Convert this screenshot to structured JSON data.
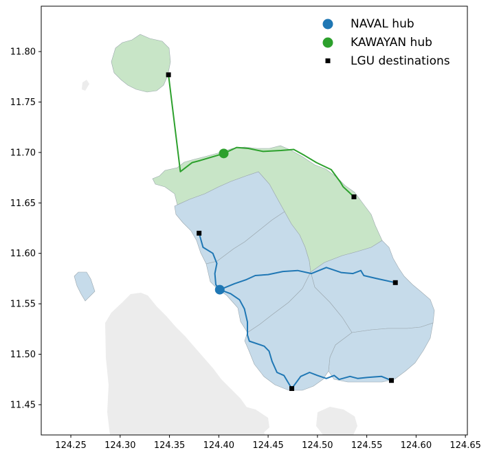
{
  "colors": {
    "land": "#ececec",
    "naval_fill": "#c6dbea",
    "kawayan_fill": "#c8e5c7",
    "boundary": "#9aa6ad",
    "naval_route": "#1f77b4",
    "kawayan_route": "#2ca02c",
    "destination": "#000000",
    "axis": "#000000"
  },
  "legend": {
    "naval_hub": "NAVAL hub",
    "kawayan_hub": "KAWAYAN hub",
    "lgu_destinations": "LGU destinations"
  },
  "chart_data": {
    "type": "scatter",
    "xlim": [
      124.22,
      124.652
    ],
    "ylim": [
      11.42,
      11.845
    ],
    "x_ticks": [
      "124.25",
      "124.30",
      "124.35",
      "124.40",
      "124.45",
      "124.50",
      "124.55",
      "124.60",
      "124.65"
    ],
    "y_ticks": [
      "11.45",
      "11.50",
      "11.55",
      "11.60",
      "11.65",
      "11.70",
      "11.75",
      "11.80"
    ],
    "series": [
      {
        "name": "NAVAL hub",
        "points": [
          [
            124.401,
            11.564
          ]
        ]
      },
      {
        "name": "KAWAYAN hub",
        "points": [
          [
            124.405,
            11.699
          ]
        ]
      },
      {
        "name": "LGU destinations",
        "points": [
          [
            124.349,
            11.777
          ],
          [
            124.38,
            11.62
          ],
          [
            124.537,
            11.656
          ],
          [
            124.579,
            11.571
          ],
          [
            124.575,
            11.474
          ],
          [
            124.474,
            11.466
          ]
        ]
      }
    ],
    "routes": {
      "kawayan": [
        [
          [
            124.405,
            11.699
          ],
          [
            124.381,
            11.692
          ],
          [
            124.373,
            11.69
          ],
          [
            124.361,
            11.681
          ],
          [
            124.349,
            11.777
          ]
        ],
        [
          [
            124.405,
            11.699
          ],
          [
            124.418,
            11.705
          ],
          [
            124.43,
            11.704
          ],
          [
            124.445,
            11.701
          ],
          [
            124.463,
            11.702
          ],
          [
            124.476,
            11.703
          ],
          [
            124.487,
            11.697
          ],
          [
            124.499,
            11.69
          ],
          [
            124.514,
            11.683
          ],
          [
            124.523,
            11.671
          ],
          [
            124.526,
            11.666
          ],
          [
            124.537,
            11.656
          ]
        ]
      ],
      "naval": [
        [
          [
            124.401,
            11.564
          ],
          [
            124.397,
            11.569
          ],
          [
            124.396,
            11.58
          ],
          [
            124.398,
            11.59
          ],
          [
            124.394,
            11.6
          ],
          [
            124.384,
            11.606
          ],
          [
            124.38,
            11.62
          ]
        ],
        [
          [
            124.401,
            11.564
          ],
          [
            124.416,
            11.57
          ],
          [
            124.428,
            11.574
          ],
          [
            124.437,
            11.578
          ],
          [
            124.45,
            11.579
          ],
          [
            124.465,
            11.582
          ],
          [
            124.48,
            11.583
          ],
          [
            124.494,
            11.58
          ],
          [
            124.509,
            11.586
          ],
          [
            124.524,
            11.581
          ],
          [
            124.536,
            11.58
          ],
          [
            124.544,
            11.583
          ],
          [
            124.547,
            11.578
          ],
          [
            124.56,
            11.575
          ],
          [
            124.579,
            11.571
          ]
        ],
        [
          [
            124.401,
            11.564
          ],
          [
            124.412,
            11.56
          ],
          [
            124.421,
            11.554
          ],
          [
            124.426,
            11.545
          ],
          [
            124.429,
            11.532
          ],
          [
            124.429,
            11.519
          ],
          [
            124.431,
            11.513
          ],
          [
            124.446,
            11.508
          ],
          [
            124.451,
            11.503
          ],
          [
            124.454,
            11.493
          ],
          [
            124.459,
            11.482
          ],
          [
            124.466,
            11.479
          ],
          [
            124.474,
            11.466
          ]
        ],
        [
          [
            124.474,
            11.466
          ],
          [
            124.483,
            11.478
          ],
          [
            124.492,
            11.482
          ],
          [
            124.5,
            11.479
          ],
          [
            124.509,
            11.476
          ],
          [
            124.517,
            11.479
          ],
          [
            124.522,
            11.475
          ],
          [
            124.533,
            11.478
          ],
          [
            124.541,
            11.476
          ],
          [
            124.551,
            11.477
          ],
          [
            124.565,
            11.478
          ],
          [
            124.575,
            11.474
          ]
        ]
      ]
    }
  }
}
